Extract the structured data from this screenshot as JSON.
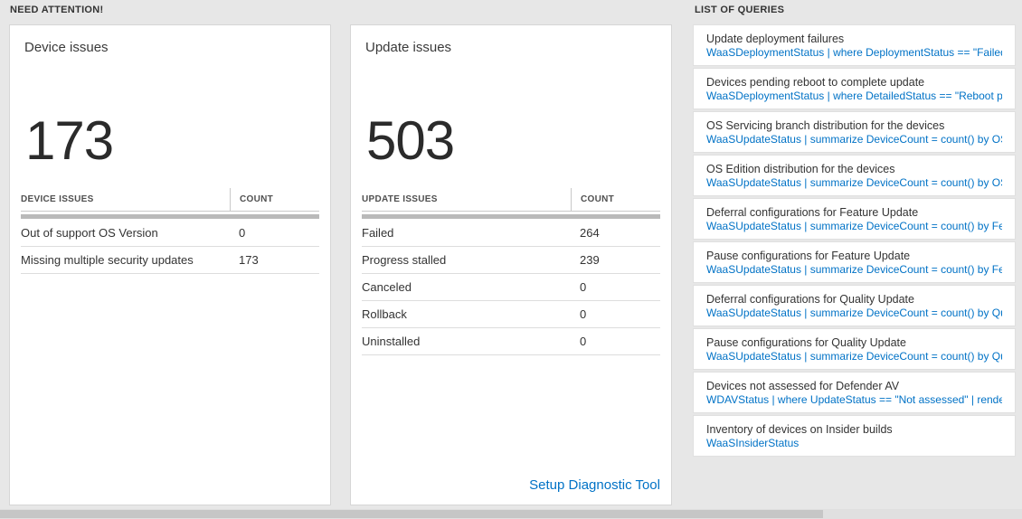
{
  "need_attention": {
    "label": "NEED ATTENTION!"
  },
  "device_card": {
    "title": "Device issues",
    "count": "173",
    "table": {
      "col1": "DEVICE ISSUES",
      "col2": "COUNT",
      "rows": [
        {
          "label": "Out of support OS Version",
          "value": "0"
        },
        {
          "label": "Missing multiple security updates",
          "value": "173"
        }
      ]
    }
  },
  "update_card": {
    "title": "Update issues",
    "count": "503",
    "table": {
      "col1": "UPDATE ISSUES",
      "col2": "COUNT",
      "rows": [
        {
          "label": "Failed",
          "value": "264"
        },
        {
          "label": "Progress stalled",
          "value": "239"
        },
        {
          "label": "Canceled",
          "value": "0"
        },
        {
          "label": "Rollback",
          "value": "0"
        },
        {
          "label": "Uninstalled",
          "value": "0"
        }
      ]
    },
    "link": "Setup Diagnostic Tool"
  },
  "query_panel": {
    "label": "LIST OF QUERIES",
    "items": [
      {
        "title": "Update deployment failures",
        "query": "WaaSDeploymentStatus | where DeploymentStatus == \"Failed\" |..."
      },
      {
        "title": "Devices pending reboot to complete update",
        "query": "WaaSDeploymentStatus | where DetailedStatus == \"Reboot pend..."
      },
      {
        "title": "OS Servicing branch distribution for the devices",
        "query": "WaaSUpdateStatus | summarize DeviceCount = count() by OSSer..."
      },
      {
        "title": "OS Edition distribution for the devices",
        "query": "WaaSUpdateStatus | summarize DeviceCount = count() by OSEdit..."
      },
      {
        "title": "Deferral configurations for Feature Update",
        "query": "WaaSUpdateStatus | summarize DeviceCount = count() by Featur..."
      },
      {
        "title": "Pause configurations for Feature Update",
        "query": "WaaSUpdateStatus | summarize DeviceCount = count() by Featur..."
      },
      {
        "title": "Deferral configurations for Quality Update",
        "query": "WaaSUpdateStatus | summarize DeviceCount = count() by Qualit..."
      },
      {
        "title": "Pause configurations for Quality Update",
        "query": "WaaSUpdateStatus | summarize DeviceCount = count() by Qualit..."
      },
      {
        "title": "Devices not assessed for Defender AV",
        "query": "WDAVStatus | where UpdateStatus == \"Not assessed\" | render ta..."
      },
      {
        "title": "Inventory of devices on Insider builds",
        "query": "WaaSInsiderStatus"
      }
    ]
  },
  "colors": {
    "accent_blue": "#0072c6",
    "page_bg": "#e7e7e7",
    "scroll_shadow": "#b9b9b9"
  }
}
